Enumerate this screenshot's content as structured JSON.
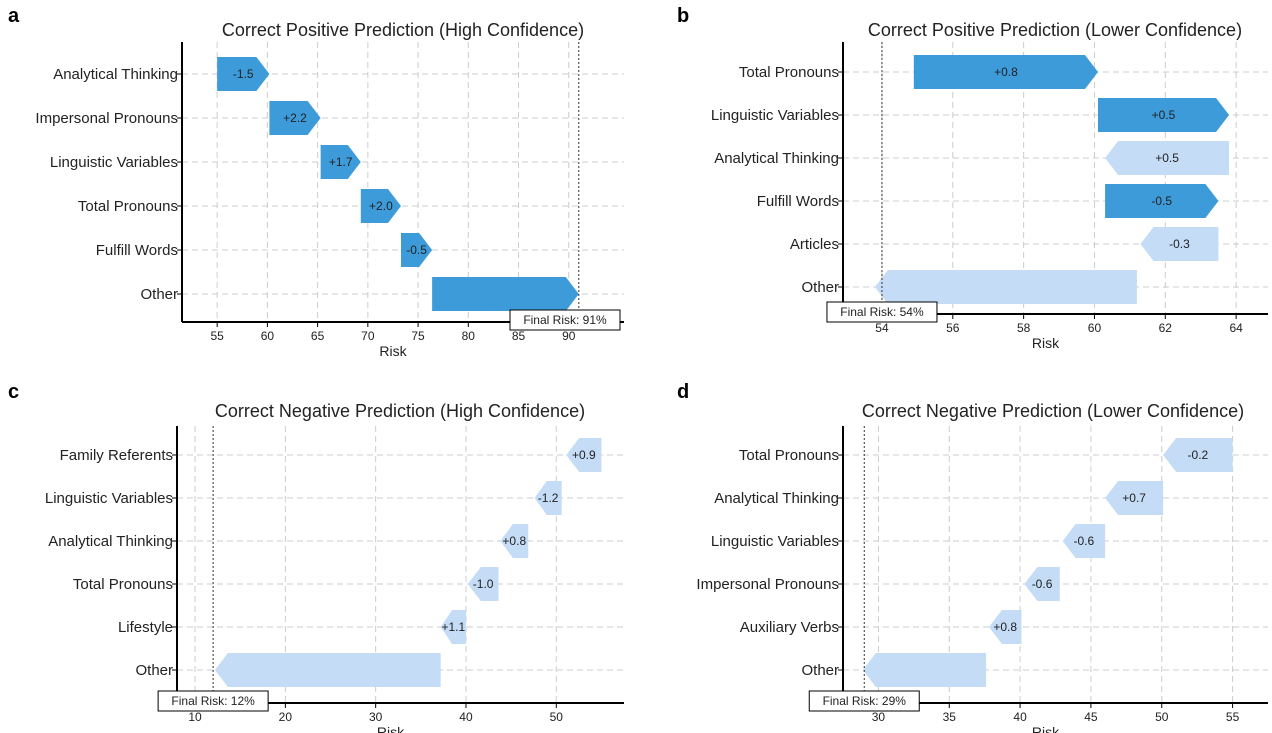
{
  "colors": {
    "dark": "#3d9bd9",
    "light": "#c5dcf7",
    "grid": "#cccccc",
    "axis": "#000000"
  },
  "chart_data": [
    {
      "panel": "a",
      "type": "bar",
      "title": "Correct Positive Prediction (High Confidence)",
      "xlabel": "Risk",
      "xlim": [
        51.5,
        95.5
      ],
      "xticks": [
        55,
        60,
        65,
        70,
        75,
        80,
        85,
        90
      ],
      "categories": [
        "Analytical Thinking",
        "Impersonal Pronouns",
        "Linguistic Variables",
        "Total Pronouns",
        "Fulfill Words",
        "Other"
      ],
      "bars": [
        {
          "label": "-1.5",
          "start": 55.0,
          "end": 60.2,
          "dir": "right",
          "shade": "dark"
        },
        {
          "label": "+2.2",
          "start": 60.2,
          "end": 65.3,
          "dir": "right",
          "shade": "dark"
        },
        {
          "label": "+1.7",
          "start": 65.3,
          "end": 69.3,
          "dir": "right",
          "shade": "dark"
        },
        {
          "label": "+2.0",
          "start": 69.3,
          "end": 73.3,
          "dir": "right",
          "shade": "dark"
        },
        {
          "label": "-0.5",
          "start": 73.3,
          "end": 76.4,
          "dir": "right",
          "shade": "dark"
        },
        {
          "label": "",
          "start": 76.4,
          "end": 91.0,
          "dir": "right",
          "shade": "dark"
        }
      ],
      "final_risk": 91,
      "final_label": "Final Risk: 91%",
      "grid": true
    },
    {
      "panel": "b",
      "type": "bar",
      "title": "Correct Positive Prediction (Lower Confidence)",
      "xlabel": "Risk",
      "xlim": [
        52.9,
        64.9
      ],
      "xticks": [
        54,
        56,
        58,
        60,
        62,
        64
      ],
      "categories": [
        "Total Pronouns",
        "Linguistic Variables",
        "Analytical Thinking",
        "Fulfill Words",
        "Articles",
        "Other"
      ],
      "bars": [
        {
          "label": "+0.8",
          "start": 54.9,
          "end": 60.1,
          "dir": "right",
          "shade": "dark"
        },
        {
          "label": "+0.5",
          "start": 60.1,
          "end": 63.8,
          "dir": "right",
          "shade": "dark"
        },
        {
          "label": "+0.5",
          "start": 60.3,
          "end": 63.8,
          "dir": "left",
          "shade": "light"
        },
        {
          "label": "-0.5",
          "start": 60.3,
          "end": 63.5,
          "dir": "right",
          "shade": "dark"
        },
        {
          "label": "-0.3",
          "start": 61.3,
          "end": 63.5,
          "dir": "left",
          "shade": "light"
        },
        {
          "label": "",
          "start": 53.8,
          "end": 61.2,
          "dir": "left",
          "shade": "light"
        }
      ],
      "final_risk": 54,
      "final_label": "Final Risk: 54%",
      "grid": true
    },
    {
      "panel": "c",
      "type": "bar",
      "title": "Correct Negative Prediction (High Confidence)",
      "xlabel": "Risk",
      "xlim": [
        8.0,
        57.5
      ],
      "xticks": [
        10,
        20,
        30,
        40,
        50
      ],
      "categories": [
        "Family Referents",
        "Linguistic Variables",
        "Analytical Thinking",
        "Total Pronouns",
        "Lifestyle",
        "Other"
      ],
      "bars": [
        {
          "label": "+0.9",
          "start": 51.1,
          "end": 55.0,
          "dir": "left",
          "shade": "light"
        },
        {
          "label": "-1.2",
          "start": 47.6,
          "end": 50.6,
          "dir": "left",
          "shade": "light"
        },
        {
          "label": "+0.8",
          "start": 43.8,
          "end": 46.9,
          "dir": "left",
          "shade": "light"
        },
        {
          "label": "-1.0",
          "start": 40.2,
          "end": 43.6,
          "dir": "left",
          "shade": "light"
        },
        {
          "label": "+1.1",
          "start": 37.2,
          "end": 40.0,
          "dir": "left",
          "shade": "light"
        },
        {
          "label": "",
          "start": 12.2,
          "end": 37.2,
          "dir": "left",
          "shade": "light"
        }
      ],
      "final_risk": 12,
      "final_label": "Final Risk: 12%",
      "grid": true
    },
    {
      "panel": "d",
      "type": "bar",
      "title": "Correct Negative Prediction (Lower Confidence)",
      "xlabel": "Risk",
      "xlim": [
        27.5,
        57.5
      ],
      "xticks": [
        30,
        35,
        40,
        45,
        50,
        55
      ],
      "categories": [
        "Total Pronouns",
        "Analytical Thinking",
        "Linguistic Variables",
        "Impersonal Pronouns",
        "Auxiliary Verbs",
        "Other"
      ],
      "bars": [
        {
          "label": "-0.2",
          "start": 50.1,
          "end": 55.0,
          "dir": "left",
          "shade": "light"
        },
        {
          "label": "+0.7",
          "start": 46.0,
          "end": 50.1,
          "dir": "left",
          "shade": "light"
        },
        {
          "label": "-0.6",
          "start": 43.0,
          "end": 46.0,
          "dir": "left",
          "shade": "light"
        },
        {
          "label": "-0.6",
          "start": 40.3,
          "end": 42.8,
          "dir": "left",
          "shade": "light"
        },
        {
          "label": "+0.8",
          "start": 37.8,
          "end": 40.1,
          "dir": "left",
          "shade": "light"
        },
        {
          "label": "",
          "start": 28.9,
          "end": 37.6,
          "dir": "left",
          "shade": "light"
        }
      ],
      "final_risk": 29,
      "final_label": "Final Risk: 29%",
      "grid": true
    }
  ]
}
